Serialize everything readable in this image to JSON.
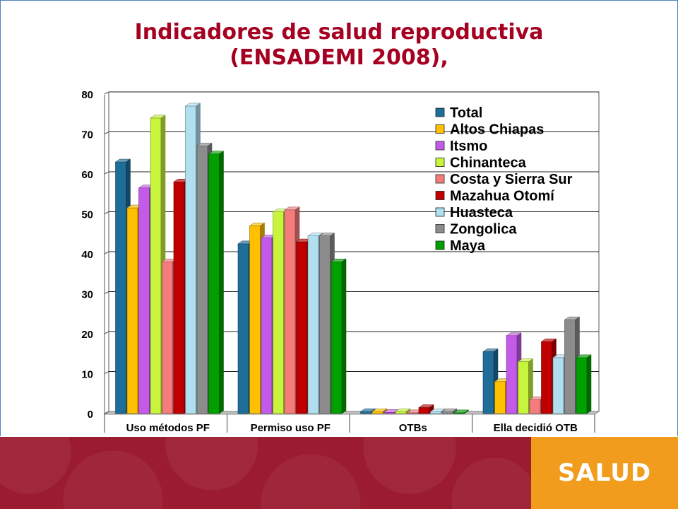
{
  "slide": {
    "title_line1": "Indicadores de salud reproductiva",
    "title_line2": "(ENSADEMI 2008),"
  },
  "footer": {
    "logo_text": "SALUD",
    "colors": {
      "banner": "#9b1b30",
      "logo_bg": "#f29c1d"
    }
  },
  "chart_data": {
    "type": "bar",
    "title": "",
    "xlabel": "",
    "ylabel": "",
    "ylim": [
      0,
      80
    ],
    "yticks": [
      0,
      10,
      20,
      30,
      40,
      50,
      60,
      70,
      80
    ],
    "grid": true,
    "legend_position": "top-right",
    "style": "3d-clustered",
    "categories": [
      "Uso métodos PF",
      "Permiso uso PF",
      "OTBs",
      "Ella decidió OTB"
    ],
    "series": [
      {
        "name": "Total",
        "color": "#1f6d99",
        "values": [
          63,
          42.5,
          0.5,
          15.5
        ]
      },
      {
        "name": "Altos Chiapas",
        "color": "#ffc000",
        "values": [
          51.5,
          47,
          0.5,
          8
        ]
      },
      {
        "name": "Itsmo",
        "color": "#c45be8",
        "values": [
          56.5,
          44,
          0.3,
          19.5
        ]
      },
      {
        "name": "Chinanteca",
        "color": "#c6f53c",
        "values": [
          74,
          50.5,
          0.5,
          13
        ]
      },
      {
        "name": "Costa y Sierra Sur",
        "color": "#f47c7c",
        "values": [
          38,
          51,
          0.2,
          3.5
        ]
      },
      {
        "name": "Mazahua Otomí",
        "color": "#c00000",
        "values": [
          58,
          43,
          1.5,
          18
        ]
      },
      {
        "name": "Huasteca",
        "color": "#b0dff0",
        "values": [
          77,
          44.5,
          0.5,
          14
        ]
      },
      {
        "name": "Zongolica",
        "color": "#8c8c8c",
        "values": [
          67,
          44.5,
          0.5,
          23.5
        ]
      },
      {
        "name": "Maya",
        "color": "#00a000",
        "values": [
          65,
          38,
          0.2,
          14
        ]
      }
    ]
  }
}
